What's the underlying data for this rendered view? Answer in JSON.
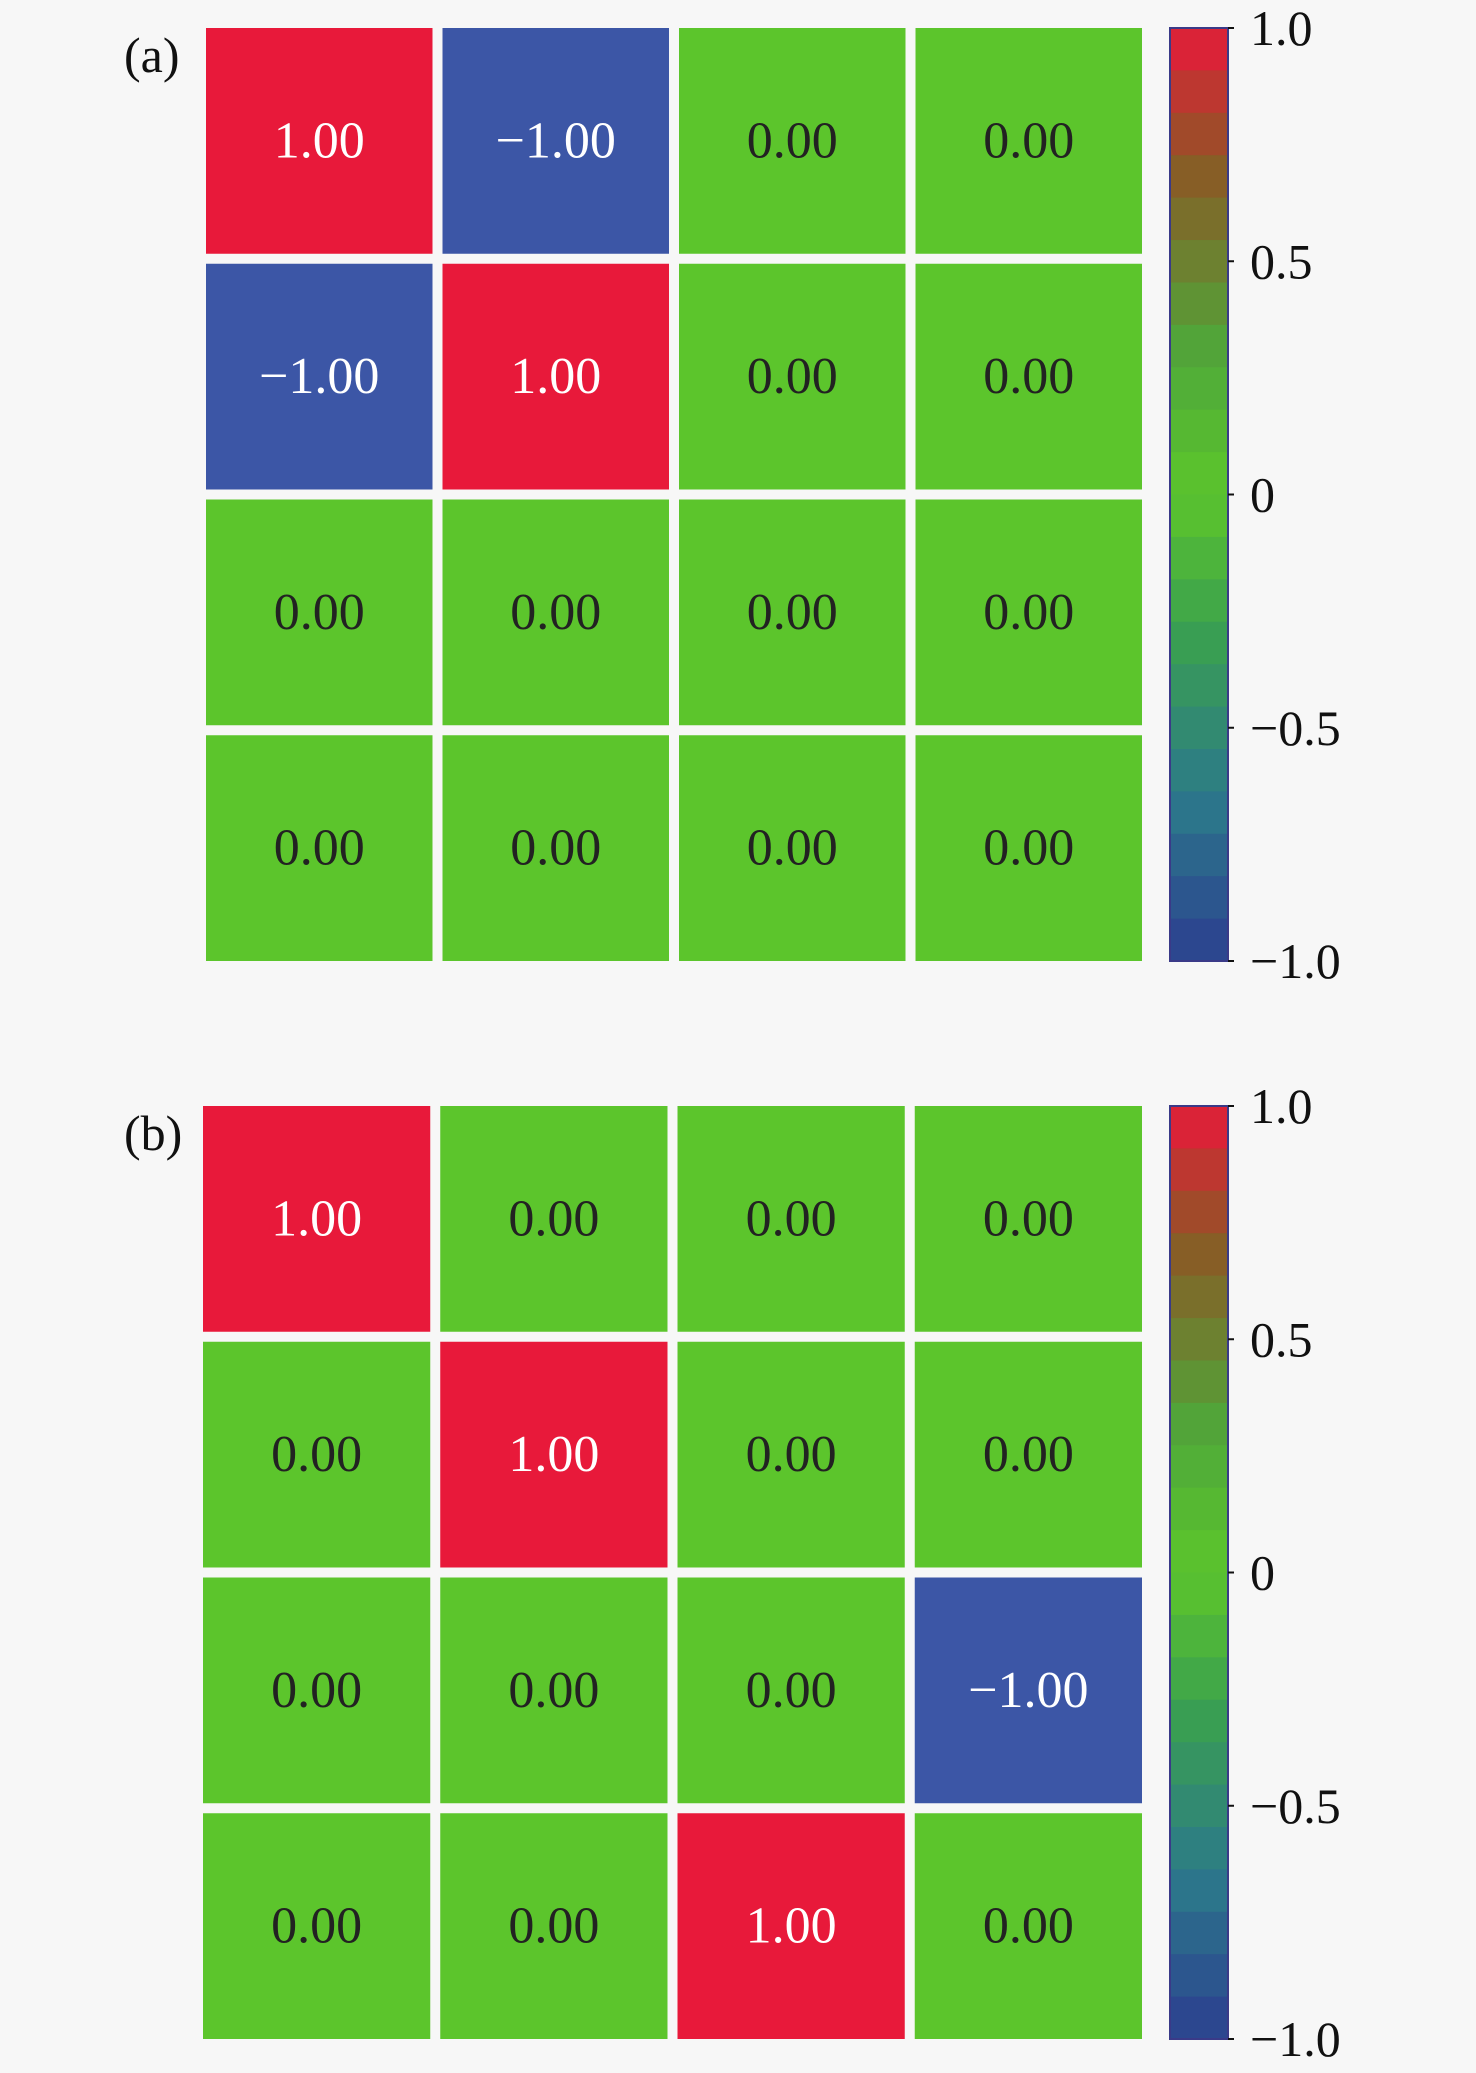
{
  "colors": {
    "negative": "#3c56a6",
    "zero": "#5cc52c",
    "positive": "#e8193a",
    "gap": "#f7f7f7"
  },
  "chart_data": [
    {
      "type": "heatmap",
      "panel_label": "(a)",
      "values": [
        [
          1.0,
          -1.0,
          0.0,
          0.0
        ],
        [
          -1.0,
          1.0,
          0.0,
          0.0
        ],
        [
          0.0,
          0.0,
          0.0,
          0.0
        ],
        [
          0.0,
          0.0,
          0.0,
          0.0
        ]
      ],
      "labels": [
        [
          "1.00",
          "−1.00",
          "0.00",
          "0.00"
        ],
        [
          "−1.00",
          "1.00",
          "0.00",
          "0.00"
        ],
        [
          "0.00",
          "0.00",
          "0.00",
          "0.00"
        ],
        [
          "0.00",
          "0.00",
          "0.00",
          "0.00"
        ]
      ],
      "colorbar": {
        "range": [
          -1.0,
          1.0
        ],
        "ticks": [
          1.0,
          0.5,
          0,
          -0.5,
          -1.0
        ],
        "tick_labels": [
          "1.0",
          "0.5",
          "0",
          "−0.5",
          "−1.0"
        ]
      }
    },
    {
      "type": "heatmap",
      "panel_label": "(b)",
      "values": [
        [
          1.0,
          0.0,
          0.0,
          0.0
        ],
        [
          0.0,
          1.0,
          0.0,
          0.0
        ],
        [
          0.0,
          0.0,
          0.0,
          -1.0
        ],
        [
          0.0,
          0.0,
          1.0,
          0.0
        ]
      ],
      "labels": [
        [
          "1.00",
          "0.00",
          "0.00",
          "0.00"
        ],
        [
          "0.00",
          "1.00",
          "0.00",
          "0.00"
        ],
        [
          "0.00",
          "0.00",
          "0.00",
          "−1.00"
        ],
        [
          "0.00",
          "0.00",
          "1.00",
          "0.00"
        ]
      ],
      "colorbar": {
        "range": [
          -1.0,
          1.0
        ],
        "ticks": [
          1.0,
          0.5,
          0,
          -0.5,
          -1.0
        ],
        "tick_labels": [
          "1.0",
          "0.5",
          "0",
          "−0.5",
          "−1.0"
        ]
      }
    }
  ]
}
